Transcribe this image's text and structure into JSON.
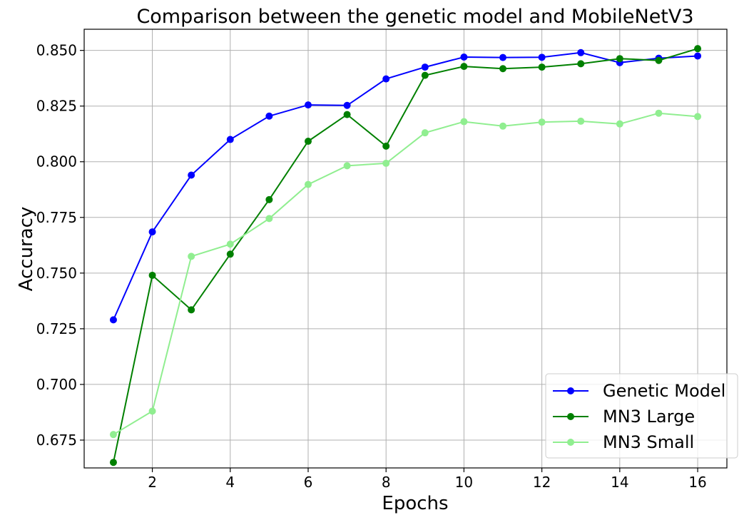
{
  "chart_data": {
    "type": "line",
    "title": "Comparison between the genetic model and MobileNetV3",
    "xlabel": "Epochs",
    "ylabel": "Accuracy",
    "xlim": [
      0.25,
      16.75
    ],
    "ylim": [
      0.6625,
      0.8595
    ],
    "xticks": [
      2,
      4,
      6,
      8,
      10,
      12,
      14,
      16
    ],
    "yticks": [
      0.675,
      0.7,
      0.725,
      0.75,
      0.775,
      0.8,
      0.825,
      0.85
    ],
    "ytick_labels": [
      "0.675",
      "0.700",
      "0.725",
      "0.750",
      "0.775",
      "0.800",
      "0.825",
      "0.850"
    ],
    "grid": true,
    "legend_position": "lower-right",
    "x": [
      1,
      2,
      3,
      4,
      5,
      6,
      7,
      8,
      9,
      10,
      11,
      12,
      13,
      14,
      15,
      16
    ],
    "series": [
      {
        "name": "Genetic Model",
        "color": "#0000ff",
        "values": [
          0.729,
          0.7685,
          0.794,
          0.81,
          0.8205,
          0.8255,
          0.8253,
          0.8372,
          0.8425,
          0.847,
          0.8468,
          0.8469,
          0.849,
          0.8445,
          0.8465,
          0.8475
        ]
      },
      {
        "name": "MN3 Large",
        "color": "#008000",
        "values": [
          0.665,
          0.749,
          0.7335,
          0.7585,
          0.783,
          0.8092,
          0.8212,
          0.807,
          0.8388,
          0.8428,
          0.8418,
          0.8425,
          0.844,
          0.8463,
          0.8455,
          0.8508
        ]
      },
      {
        "name": "MN3 Small",
        "color": "#90ee90",
        "values": [
          0.6775,
          0.688,
          0.7575,
          0.763,
          0.7745,
          0.7898,
          0.7982,
          0.7993,
          0.813,
          0.818,
          0.816,
          0.8178,
          0.8182,
          0.817,
          0.8218,
          0.8203
        ]
      }
    ]
  }
}
